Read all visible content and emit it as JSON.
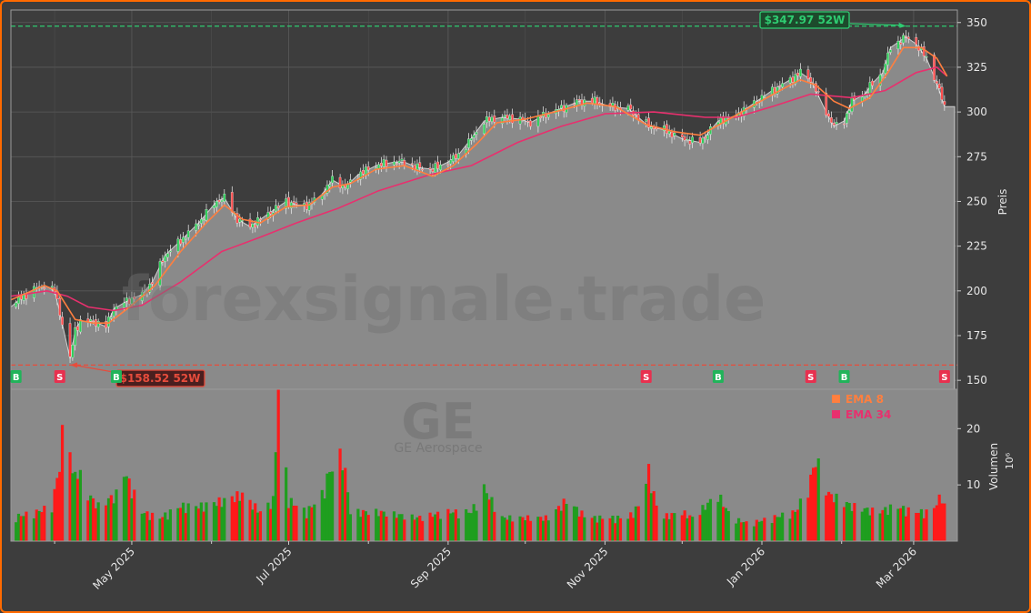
{
  "chart_data": [
    {
      "type": "candlestick",
      "ticker": "GE",
      "company": "GE Aerospace",
      "watermark": "forexsignale.trade",
      "ylabel": "Preis",
      "ylim": [
        145,
        357
      ],
      "yticks": [
        150,
        175,
        200,
        225,
        250,
        275,
        300,
        325,
        350
      ],
      "xlim": [
        "2025-03-15",
        "2026-03-18"
      ],
      "xticks": [
        {
          "date": "2025-05-01",
          "label": "May 2025"
        },
        {
          "date": "2025-07-01",
          "label": "Jul 2025"
        },
        {
          "date": "2025-09-01",
          "label": "Sep 2025"
        },
        {
          "date": "2025-11-01",
          "label": "Nov 2025"
        },
        {
          "date": "2026-01-01",
          "label": "Jan 2026"
        },
        {
          "date": "2026-03-01",
          "label": "Mar 2026"
        }
      ],
      "minor_xticks": [
        "2025-04-01",
        "2025-06-01",
        "2025-08-01",
        "2025-10-01",
        "2025-12-01",
        "2026-02-01"
      ],
      "high_52w": {
        "value": 347.97,
        "label": "$347.97 52W",
        "date": "2026-02-26",
        "color": "#2ecc71"
      },
      "low_52w": {
        "value": 158.52,
        "label": "$158.52 52W",
        "date": "2025-04-07",
        "color": "#e74c3c"
      },
      "close_path": [
        [
          "2025-03-15",
          191
        ],
        [
          "2025-03-19",
          196
        ],
        [
          "2025-03-24",
          201
        ],
        [
          "2025-03-28",
          203
        ],
        [
          "2025-04-01",
          200
        ],
        [
          "2025-04-03",
          188
        ],
        [
          "2025-04-07",
          162
        ],
        [
          "2025-04-09",
          178
        ],
        [
          "2025-04-11",
          183
        ],
        [
          "2025-04-16",
          183
        ],
        [
          "2025-04-21",
          180
        ],
        [
          "2025-04-24",
          190
        ],
        [
          "2025-04-30",
          195
        ],
        [
          "2025-05-05",
          198
        ],
        [
          "2025-05-09",
          205
        ],
        [
          "2025-05-14",
          220
        ],
        [
          "2025-05-20",
          228
        ],
        [
          "2025-05-27",
          238
        ],
        [
          "2025-06-03",
          250
        ],
        [
          "2025-06-06",
          252
        ],
        [
          "2025-06-11",
          240
        ],
        [
          "2025-06-16",
          236
        ],
        [
          "2025-06-20",
          240
        ],
        [
          "2025-06-25",
          245
        ],
        [
          "2025-06-30",
          250
        ],
        [
          "2025-07-04",
          248
        ],
        [
          "2025-07-09",
          248
        ],
        [
          "2025-07-14",
          254
        ],
        [
          "2025-07-18",
          262
        ],
        [
          "2025-07-23",
          258
        ],
        [
          "2025-07-28",
          265
        ],
        [
          "2025-08-04",
          270
        ],
        [
          "2025-08-11",
          272
        ],
        [
          "2025-08-15",
          272
        ],
        [
          "2025-08-20",
          269
        ],
        [
          "2025-08-26",
          268
        ],
        [
          "2025-09-01",
          272
        ],
        [
          "2025-09-05",
          276
        ],
        [
          "2025-09-10",
          285
        ],
        [
          "2025-09-15",
          295
        ],
        [
          "2025-09-22",
          297
        ],
        [
          "2025-09-29",
          296
        ],
        [
          "2025-10-03",
          294
        ],
        [
          "2025-10-08",
          298
        ],
        [
          "2025-10-15",
          302
        ],
        [
          "2025-10-22",
          306
        ],
        [
          "2025-10-28",
          306
        ],
        [
          "2025-11-03",
          303
        ],
        [
          "2025-11-10",
          302
        ],
        [
          "2025-11-18",
          292
        ],
        [
          "2025-11-24",
          290
        ],
        [
          "2025-12-01",
          285
        ],
        [
          "2025-12-08",
          283
        ],
        [
          "2025-12-15",
          295
        ],
        [
          "2025-12-22",
          298
        ],
        [
          "2025-12-29",
          305
        ],
        [
          "2026-01-05",
          312
        ],
        [
          "2026-01-12",
          318
        ],
        [
          "2026-01-16",
          322
        ],
        [
          "2026-01-20",
          318
        ],
        [
          "2026-01-26",
          300
        ],
        [
          "2026-01-29",
          292
        ],
        [
          "2026-02-02",
          295
        ],
        [
          "2026-02-05",
          306
        ],
        [
          "2026-02-10",
          310
        ],
        [
          "2026-02-13",
          316
        ],
        [
          "2026-02-17",
          322
        ],
        [
          "2026-02-20",
          336
        ],
        [
          "2026-02-24",
          340
        ],
        [
          "2026-02-26",
          342
        ],
        [
          "2026-03-02",
          338
        ],
        [
          "2026-03-06",
          330
        ],
        [
          "2026-03-10",
          316
        ],
        [
          "2026-03-13",
          303
        ]
      ],
      "ema8": [
        [
          "2025-03-15",
          195
        ],
        [
          "2025-03-28",
          203
        ],
        [
          "2025-04-02",
          200
        ],
        [
          "2025-04-09",
          184
        ],
        [
          "2025-04-16",
          182
        ],
        [
          "2025-04-22",
          182
        ],
        [
          "2025-05-01",
          192
        ],
        [
          "2025-05-10",
          203
        ],
        [
          "2025-05-20",
          222
        ],
        [
          "2025-05-30",
          238
        ],
        [
          "2025-06-06",
          248
        ],
        [
          "2025-06-13",
          240
        ],
        [
          "2025-06-20",
          238
        ],
        [
          "2025-06-30",
          247
        ],
        [
          "2025-07-09",
          248
        ],
        [
          "2025-07-18",
          258
        ],
        [
          "2025-07-25",
          260
        ],
        [
          "2025-08-04",
          268
        ],
        [
          "2025-08-15",
          270
        ],
        [
          "2025-08-26",
          264
        ],
        [
          "2025-09-03",
          270
        ],
        [
          "2025-09-12",
          282
        ],
        [
          "2025-09-20",
          294
        ],
        [
          "2025-10-01",
          296
        ],
        [
          "2025-10-15",
          301
        ],
        [
          "2025-10-25",
          305
        ],
        [
          "2025-11-05",
          303
        ],
        [
          "2025-11-17",
          293
        ],
        [
          "2025-11-28",
          289
        ],
        [
          "2025-12-08",
          287
        ],
        [
          "2025-12-18",
          295
        ],
        [
          "2025-12-29",
          304
        ],
        [
          "2026-01-08",
          312
        ],
        [
          "2026-01-16",
          318
        ],
        [
          "2026-01-22",
          315
        ],
        [
          "2026-01-29",
          306
        ],
        [
          "2026-02-04",
          302
        ],
        [
          "2026-02-12",
          308
        ],
        [
          "2026-02-19",
          322
        ],
        [
          "2026-02-25",
          336
        ],
        [
          "2026-03-04",
          336
        ],
        [
          "2026-03-10",
          330
        ],
        [
          "2026-03-14",
          320
        ]
      ],
      "ema34": [
        [
          "2025-03-15",
          197
        ],
        [
          "2025-03-29",
          200
        ],
        [
          "2025-04-06",
          197
        ],
        [
          "2025-04-14",
          191
        ],
        [
          "2025-04-24",
          189
        ],
        [
          "2025-05-05",
          192
        ],
        [
          "2025-05-20",
          205
        ],
        [
          "2025-06-05",
          222
        ],
        [
          "2025-06-20",
          230
        ],
        [
          "2025-07-04",
          238
        ],
        [
          "2025-07-20",
          246
        ],
        [
          "2025-08-05",
          256
        ],
        [
          "2025-08-25",
          265
        ],
        [
          "2025-09-10",
          270
        ],
        [
          "2025-09-28",
          283
        ],
        [
          "2025-10-15",
          292
        ],
        [
          "2025-11-01",
          299
        ],
        [
          "2025-11-20",
          300
        ],
        [
          "2025-12-10",
          297
        ],
        [
          "2025-12-22",
          297
        ],
        [
          "2026-01-05",
          303
        ],
        [
          "2026-01-20",
          310
        ],
        [
          "2026-02-05",
          308
        ],
        [
          "2026-02-18",
          312
        ],
        [
          "2026-03-02",
          322
        ],
        [
          "2026-03-10",
          325
        ],
        [
          "2026-03-14",
          320
        ]
      ],
      "signals": [
        {
          "type": "B",
          "date": "2025-03-17"
        },
        {
          "type": "S",
          "date": "2025-04-03"
        },
        {
          "type": "B",
          "date": "2025-04-25"
        },
        {
          "type": "S",
          "date": "2025-11-17"
        },
        {
          "type": "B",
          "date": "2025-12-15"
        },
        {
          "type": "S",
          "date": "2026-01-20"
        },
        {
          "type": "B",
          "date": "2026-02-02"
        },
        {
          "type": "S",
          "date": "2026-03-13"
        }
      ],
      "legend": [
        {
          "name": "EMA 8",
          "color": "#ff7f3f"
        },
        {
          "name": "EMA 34",
          "color": "#e8306e"
        }
      ]
    },
    {
      "type": "bar",
      "ylabel": "Volumen",
      "yunit": "10⁶",
      "ylim": [
        0,
        27
      ],
      "yticks": [
        10,
        20
      ],
      "up_color": "#1f9e1f",
      "down_color": "#ff1a1a",
      "volume_path": [
        [
          "2025-03-15",
          4
        ],
        [
          "2025-03-25",
          5
        ],
        [
          "2025-03-31",
          6
        ],
        [
          "2025-04-03",
          13
        ],
        [
          "2025-04-04",
          18
        ],
        [
          "2025-04-07",
          18
        ],
        [
          "2025-04-08",
          11
        ],
        [
          "2025-04-10",
          12
        ],
        [
          "2025-04-14",
          8
        ],
        [
          "2025-04-18",
          6
        ],
        [
          "2025-04-25",
          8
        ],
        [
          "2025-04-28",
          12
        ],
        [
          "2025-05-05",
          5
        ],
        [
          "2025-05-12",
          4
        ],
        [
          "2025-05-20",
          6
        ],
        [
          "2025-05-28",
          6
        ],
        [
          "2025-06-06",
          7
        ],
        [
          "2025-06-13",
          8
        ],
        [
          "2025-06-20",
          5
        ],
        [
          "2025-06-25",
          7
        ],
        [
          "2025-06-27",
          26
        ],
        [
          "2025-07-01",
          7
        ],
        [
          "2025-07-08",
          5
        ],
        [
          "2025-07-14",
          8
        ],
        [
          "2025-07-17",
          12
        ],
        [
          "2025-07-22",
          15
        ],
        [
          "2025-07-25",
          5
        ],
        [
          "2025-08-05",
          5
        ],
        [
          "2025-08-20",
          4
        ],
        [
          "2025-09-01",
          5
        ],
        [
          "2025-09-10",
          5
        ],
        [
          "2025-09-15",
          9
        ],
        [
          "2025-09-22",
          4
        ],
        [
          "2025-10-01",
          4
        ],
        [
          "2025-10-10",
          4
        ],
        [
          "2025-10-17",
          7
        ],
        [
          "2025-10-25",
          4
        ],
        [
          "2025-11-01",
          4
        ],
        [
          "2025-11-10",
          4
        ],
        [
          "2025-11-14",
          6
        ],
        [
          "2025-11-18",
          12
        ],
        [
          "2025-11-22",
          4
        ],
        [
          "2025-12-01",
          5
        ],
        [
          "2025-12-05",
          4
        ],
        [
          "2025-12-10",
          6
        ],
        [
          "2025-12-15",
          8
        ],
        [
          "2025-12-20",
          4
        ],
        [
          "2025-12-27",
          3
        ],
        [
          "2026-01-05",
          4
        ],
        [
          "2026-01-14",
          5
        ],
        [
          "2026-01-19",
          9
        ],
        [
          "2026-01-22",
          14
        ],
        [
          "2026-01-27",
          8
        ],
        [
          "2026-02-05",
          6
        ],
        [
          "2026-02-15",
          5
        ],
        [
          "2026-02-22",
          6
        ],
        [
          "2026-03-01",
          5
        ],
        [
          "2026-03-08",
          5
        ],
        [
          "2026-03-12",
          8
        ],
        [
          "2026-03-13",
          6
        ]
      ]
    }
  ]
}
